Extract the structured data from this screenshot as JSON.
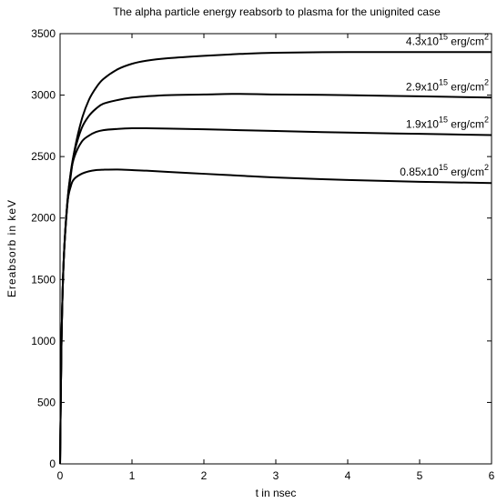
{
  "chart_data": {
    "type": "line",
    "title": "The alpha particle energy reabsorb to plasma for the unignited case",
    "xlabel": "t in nsec",
    "ylabel": "Ereabsorb in  keV",
    "xlim": [
      0,
      6
    ],
    "ylim": [
      0,
      3500
    ],
    "xticks": [
      "0",
      "1",
      "2",
      "3",
      "4",
      "5",
      "6"
    ],
    "yticks": [
      "0",
      "500",
      "1000",
      "1500",
      "2000",
      "2500",
      "3000",
      "3500"
    ],
    "grid": false,
    "legend": "none",
    "series": [
      {
        "annotation": {
          "mantissa": "4.3x10",
          "exponent": "15",
          "unit": " erg/cm",
          "unit_exp": "2"
        },
        "x": [
          0,
          0.02,
          0.05,
          0.1,
          0.15,
          0.2,
          0.3,
          0.4,
          0.5,
          0.6,
          0.8,
          1.0,
          1.2,
          1.5,
          2.0,
          2.5,
          3.0,
          4.0,
          5.0,
          6.0
        ],
        "y": [
          0,
          1000,
          1650,
          2100,
          2350,
          2550,
          2800,
          2960,
          3060,
          3130,
          3210,
          3255,
          3280,
          3300,
          3320,
          3335,
          3345,
          3350,
          3350,
          3350
        ]
      },
      {
        "annotation": {
          "mantissa": "2.9x10",
          "exponent": "15",
          "unit": " erg/cm",
          "unit_exp": "2"
        },
        "x": [
          0,
          0.02,
          0.05,
          0.1,
          0.15,
          0.2,
          0.3,
          0.4,
          0.5,
          0.6,
          0.8,
          1.0,
          1.2,
          1.5,
          2.0,
          2.5,
          3.0,
          4.0,
          5.0,
          6.0
        ],
        "y": [
          0,
          1000,
          1650,
          2120,
          2380,
          2540,
          2730,
          2830,
          2890,
          2930,
          2960,
          2980,
          2990,
          3000,
          3005,
          3010,
          3005,
          3000,
          2990,
          2980
        ]
      },
      {
        "annotation": {
          "mantissa": "1.9x10",
          "exponent": "15",
          "unit": " erg/cm",
          "unit_exp": "2"
        },
        "x": [
          0,
          0.02,
          0.05,
          0.1,
          0.15,
          0.2,
          0.3,
          0.4,
          0.5,
          0.6,
          0.8,
          1.0,
          1.2,
          1.5,
          2.0,
          2.5,
          3.0,
          4.0,
          5.0,
          6.0
        ],
        "y": [
          0,
          1000,
          1650,
          2120,
          2370,
          2500,
          2620,
          2670,
          2700,
          2715,
          2725,
          2730,
          2730,
          2728,
          2722,
          2715,
          2708,
          2695,
          2685,
          2675
        ]
      },
      {
        "annotation": {
          "mantissa": "0.85x10",
          "exponent": "15",
          "unit": " erg/cm",
          "unit_exp": "2"
        },
        "x": [
          0,
          0.02,
          0.05,
          0.1,
          0.15,
          0.2,
          0.3,
          0.4,
          0.5,
          0.6,
          0.8,
          1.0,
          1.2,
          1.5,
          2.0,
          2.5,
          3.0,
          4.0,
          5.0,
          6.0
        ],
        "y": [
          0,
          1000,
          1650,
          2110,
          2260,
          2320,
          2360,
          2380,
          2390,
          2393,
          2395,
          2390,
          2385,
          2375,
          2360,
          2345,
          2330,
          2310,
          2295,
          2285
        ]
      }
    ]
  }
}
